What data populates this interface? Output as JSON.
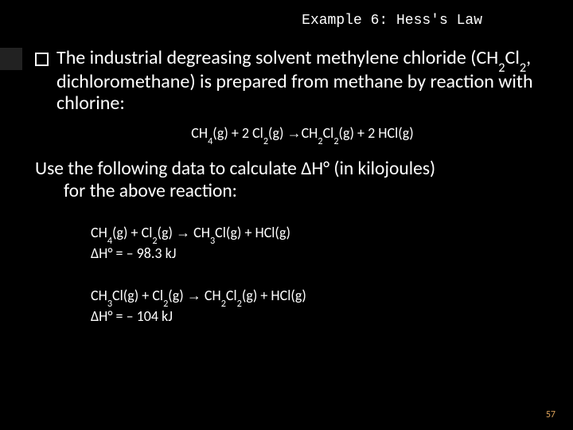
{
  "title": "Example 6: Hess's Law",
  "intro_parts": {
    "p1": "The industrial degreasing solvent methylene chloride (CH",
    "p2": "Cl",
    "p3": ", dichloromethane) is prepared from methane by reaction with chlorine:"
  },
  "main_eq": {
    "a": "CH",
    "b": "(g) + 2 Cl",
    "c": "(g) ",
    "arrow": "→",
    "d": "CH",
    "e": "Cl",
    "f": "(g) + 2 HCl(g)"
  },
  "use_data": {
    "line1a": "Use the following data to calculate ",
    "dh": "ΔH°",
    "line1b": " (in kilojoules)",
    "line2": "for the above reaction:"
  },
  "rxn1": {
    "a": "CH",
    "b": "(g) + Cl",
    "c": "(g)  ",
    "arrow": "→",
    "d": "  CH",
    "e": "Cl(g) + HCl(g)",
    "dh_label": "ΔH° = – 98.3 kJ"
  },
  "rxn2": {
    "a": "CH",
    "b": "Cl(g) + Cl",
    "c": "(g)   ",
    "arrow": "→",
    "d": "  CH",
    "e": "Cl",
    "f": "(g) + HCl(g)",
    "dh_label": "ΔH° = – 104 kJ"
  },
  "page_number": "57",
  "subs": {
    "two": "2",
    "three": "3",
    "four": "4"
  }
}
